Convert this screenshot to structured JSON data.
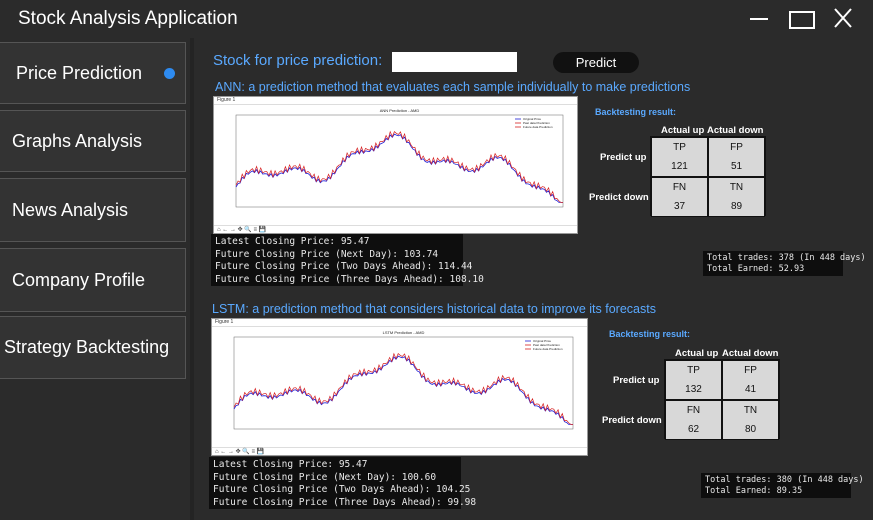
{
  "window": {
    "title": "Stock Analysis Application"
  },
  "sidebar": {
    "items": [
      {
        "label": "Price Prediction"
      },
      {
        "label": "Graphs Analysis"
      },
      {
        "label": "News Analysis"
      },
      {
        "label": "Company Profile"
      },
      {
        "label": "Strategy Backtesting"
      }
    ]
  },
  "main": {
    "stock_label": "Stock for price prediction:",
    "stock_input_value": "",
    "predict_button": "Predict"
  },
  "ann": {
    "heading": "ANN: a prediction method that evaluates each sample individually to make predictions",
    "plot": {
      "window_label": "Figure 1",
      "title": "ANN Prediction - AMD",
      "legend": [
        "Original Price",
        "Past data Prediction",
        "Future data Prediction"
      ],
      "colors": {
        "original": "#1f1fd6",
        "past": "#d62020",
        "future": "#d62020"
      }
    },
    "console": [
      "Latest Closing Price: 95.47",
      "Future Closing Price (Next Day): 103.74",
      "Future Closing Price (Two Days Ahead): 114.44",
      "Future Closing Price (Three Days Ahead): 108.10"
    ],
    "backtest": {
      "label": "Backtesting result:",
      "col_up": "Actual up",
      "col_down": "Actual down",
      "row_up": "Predict up",
      "row_down": "Predict down",
      "tp_label": "TP",
      "tp": "121",
      "fp_label": "FP",
      "fp": "51",
      "fn_label": "FN",
      "fn": "37",
      "tn_label": "TN",
      "tn": "89"
    },
    "totals": [
      "Total trades: 378 (In 448 days)",
      "Total Earned: 52.93"
    ]
  },
  "lstm": {
    "heading": "LSTM: a prediction method that considers historical data to improve its forecasts",
    "plot": {
      "window_label": "Figure 1",
      "title": "LSTM Prediction - AMD",
      "legend": [
        "Original Price",
        "Past data Prediction",
        "Future data Prediction"
      ]
    },
    "console": [
      "Latest Closing Price: 95.47",
      "Future Closing Price (Next Day): 100.60",
      "Future Closing Price (Two Days Ahead): 104.25",
      "Future Closing Price (Three Days Ahead): 99.98"
    ],
    "backtest": {
      "label": "Backtesting result:",
      "col_up": "Actual up",
      "col_down": "Actual down",
      "row_up": "Predict up",
      "row_down": "Predict down",
      "tp_label": "TP",
      "tp": "132",
      "fp_label": "FP",
      "fp": "41",
      "fn_label": "FN",
      "fn": "62",
      "tn_label": "TN",
      "tn": "80"
    },
    "totals": [
      "Total trades: 380 (In 448 days)",
      "Total Earned: 89.35"
    ]
  }
}
